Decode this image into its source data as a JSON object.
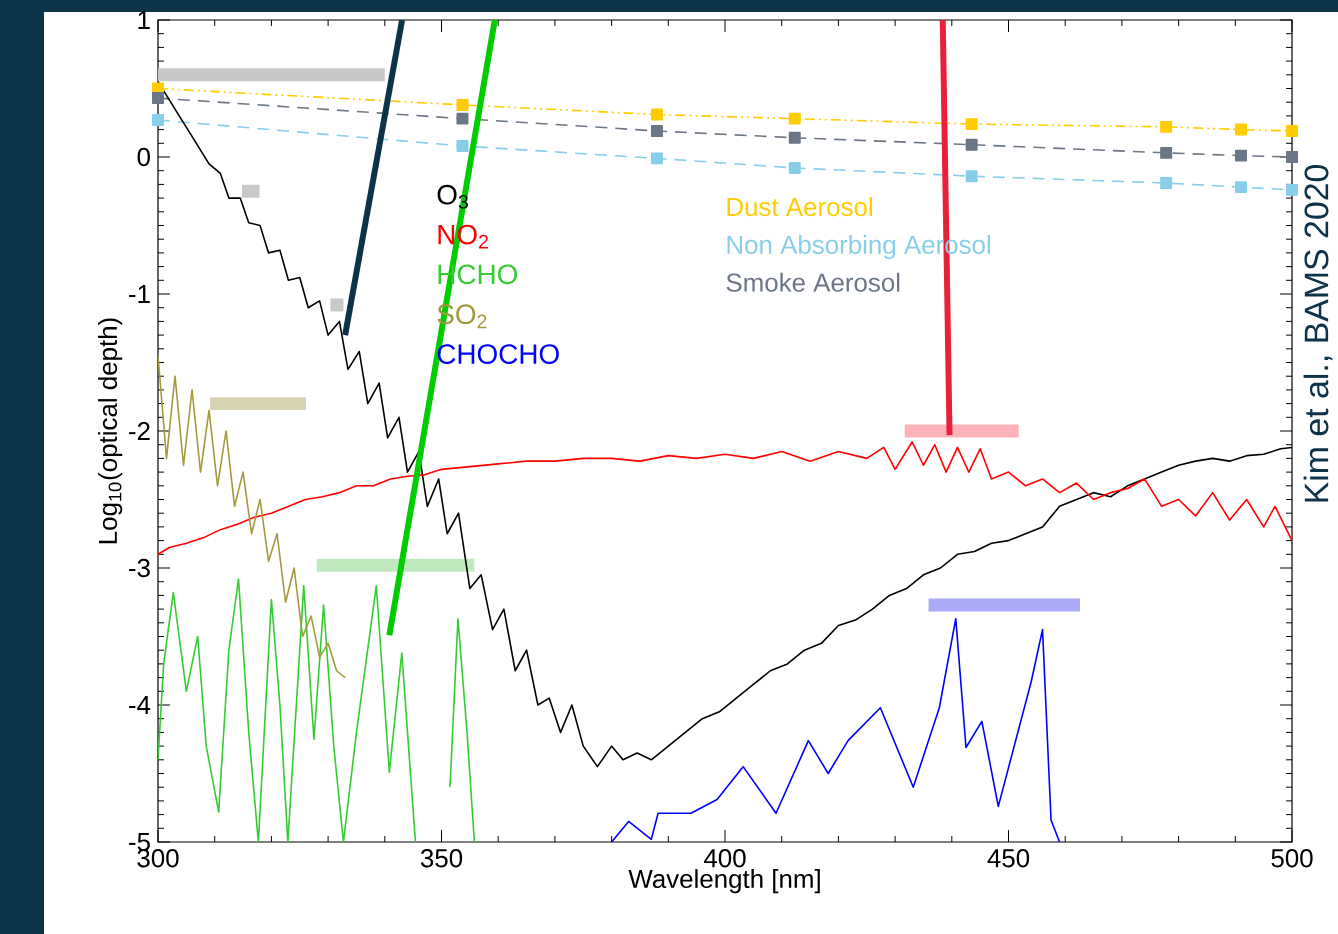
{
  "chart_data": {
    "type": "line",
    "xlabel": "Wavelength [nm]",
    "ylabel": "Log$_{10}$(optical depth)",
    "xlim": [
      300,
      500
    ],
    "xticks": [
      300,
      350,
      400,
      450,
      500
    ],
    "ylim": [
      -5,
      1
    ],
    "yticks": [
      -5,
      -4,
      -3,
      -2,
      -1,
      0,
      1
    ],
    "grid": false,
    "legend": "top",
    "annotations": [
      "Kim et al., BAMS 2020"
    ],
    "series": [
      {
        "color": "#c8c8c8",
        "x": [
          300,
          340
        ],
        "values": [
          0.6,
          0.6
        ]
      },
      {
        "color": "#c8c8c8",
        "x": [
          314.8,
          317.9
        ],
        "values": [
          -0.25,
          -0.25
        ]
      },
      {
        "color": "#c8c8c8",
        "x": [
          330.4,
          332.7
        ],
        "values": [
          -1.08,
          -1.08
        ]
      },
      {
        "color": "#d6d3b0",
        "x": [
          309.2,
          326.1
        ],
        "values": [
          -1.8,
          -1.8
        ]
      },
      {
        "color": "#bfeabf",
        "x": [
          328,
          355.8
        ],
        "values": [
          -2.98,
          -2.98
        ]
      },
      {
        "color": "#ffb3b8",
        "x": [
          431.7,
          451.8
        ],
        "values": [
          -2.0,
          -2.0
        ]
      },
      {
        "color": "#a9a9f7",
        "x": [
          435.9,
          462.6
        ],
        "values": [
          -3.27,
          -3.27
        ]
      },
      {
        "name": "Dust Aerosol",
        "color": "#ffcc00",
        "line_style": "dotted",
        "marker": "square",
        "x": [
          300,
          353.7,
          388,
          412.3,
          443.5,
          477.8,
          491,
          500
        ],
        "values": [
          0.5,
          0.38,
          0.31,
          0.28,
          0.24,
          0.22,
          0.2,
          0.19
        ]
      },
      {
        "name": "Non Absorbing Aerosol",
        "color": "#87ceeb",
        "line_style": "dashed",
        "marker": "square",
        "x": [
          300,
          353.7,
          388,
          412.3,
          443.5,
          477.8,
          491,
          500
        ],
        "values": [
          0.27,
          0.08,
          -0.01,
          -0.08,
          -0.14,
          -0.19,
          -0.22,
          -0.24
        ]
      },
      {
        "name": "Smoke Aerosol",
        "color": "#6b7686",
        "line_style": "dashed",
        "marker": "square",
        "x": [
          300,
          353.7,
          388,
          412.3,
          443.5,
          477.8,
          491,
          500
        ],
        "values": [
          0.43,
          0.28,
          0.19,
          0.14,
          0.09,
          0.03,
          0.01,
          0.0
        ]
      },
      {
        "name": "O$_{3}$",
        "color": "#000000",
        "x": [
          300,
          303,
          306,
          309,
          311,
          312.5,
          314.5,
          316,
          318,
          319.5,
          321.5,
          323,
          325,
          326.5,
          328.5,
          330,
          332,
          333.5,
          335.5,
          337,
          339,
          340.5,
          342.5,
          344,
          346,
          347.5,
          349.5,
          351,
          353,
          355,
          357,
          359,
          361,
          363,
          365,
          367,
          369,
          371,
          373,
          375,
          377.5,
          380,
          382,
          384.5,
          387,
          390,
          393,
          396,
          399,
          402,
          405,
          408,
          411,
          414,
          417,
          420,
          423,
          426,
          429,
          432,
          435,
          438,
          441,
          444,
          447,
          450,
          453,
          456,
          459,
          462,
          465,
          468,
          471,
          474,
          477,
          480,
          483,
          486,
          489,
          492,
          495,
          498,
          500
        ],
        "values": [
          0.55,
          0.35,
          0.15,
          -0.05,
          -0.12,
          -0.3,
          -0.3,
          -0.48,
          -0.5,
          -0.7,
          -0.68,
          -0.9,
          -0.88,
          -1.1,
          -1.05,
          -1.3,
          -1.2,
          -1.55,
          -1.42,
          -1.8,
          -1.65,
          -2.05,
          -1.9,
          -2.3,
          -2.15,
          -2.55,
          -2.35,
          -2.75,
          -2.6,
          -3.15,
          -3.05,
          -3.45,
          -3.3,
          -3.75,
          -3.6,
          -4.0,
          -3.95,
          -4.2,
          -4.0,
          -4.3,
          -4.45,
          -4.3,
          -4.4,
          -4.35,
          -4.4,
          -4.3,
          -4.2,
          -4.1,
          -4.05,
          -3.95,
          -3.85,
          -3.75,
          -3.7,
          -3.6,
          -3.55,
          -3.42,
          -3.38,
          -3.3,
          -3.2,
          -3.15,
          -3.05,
          -3.0,
          -2.9,
          -2.88,
          -2.82,
          -2.8,
          -2.75,
          -2.7,
          -2.55,
          -2.5,
          -2.45,
          -2.48,
          -2.4,
          -2.35,
          -2.3,
          -2.25,
          -2.22,
          -2.2,
          -2.22,
          -2.18,
          -2.17,
          -2.13,
          -2.12
        ]
      },
      {
        "name": "NO$_{2}$",
        "color": "#ff0000",
        "x": [
          300,
          302,
          305,
          308,
          311,
          314,
          317,
          320,
          323,
          326,
          329,
          332,
          335,
          338,
          341,
          344,
          347,
          350,
          355,
          360,
          365,
          370,
          375,
          380,
          385,
          390,
          395,
          400,
          405,
          410,
          415,
          420,
          425,
          428,
          430,
          433,
          435,
          437,
          439,
          441,
          443,
          445,
          447,
          450,
          453,
          456,
          459,
          462,
          465,
          468,
          471,
          474,
          477,
          480,
          483,
          486,
          489,
          492,
          495,
          497,
          500
        ],
        "values": [
          -2.9,
          -2.85,
          -2.82,
          -2.78,
          -2.72,
          -2.68,
          -2.63,
          -2.6,
          -2.55,
          -2.5,
          -2.48,
          -2.45,
          -2.4,
          -2.4,
          -2.35,
          -2.33,
          -2.32,
          -2.28,
          -2.26,
          -2.24,
          -2.22,
          -2.22,
          -2.2,
          -2.2,
          -2.22,
          -2.18,
          -2.2,
          -2.17,
          -2.2,
          -2.15,
          -2.22,
          -2.15,
          -2.2,
          -2.12,
          -2.28,
          -2.08,
          -2.25,
          -2.1,
          -2.3,
          -2.12,
          -2.3,
          -2.13,
          -2.35,
          -2.3,
          -2.4,
          -2.35,
          -2.45,
          -2.38,
          -2.5,
          -2.45,
          -2.42,
          -2.35,
          -2.55,
          -2.5,
          -2.62,
          -2.45,
          -2.65,
          -2.5,
          -2.7,
          -2.55,
          -2.8
        ]
      },
      {
        "name": "HCHO",
        "color": "#33cc33",
        "x": [
          300,
          301,
          302.7,
          305,
          307,
          308.5,
          310.7,
          312.5,
          314.2,
          316,
          317.7,
          320,
          321.5,
          322.9,
          325.7,
          327.5,
          329.2,
          331,
          332.7,
          335,
          338.5,
          340.8,
          343,
          345.4,
          348,
          351.5,
          352.9,
          354.5,
          355.8
        ],
        "values": [
          -4.4,
          -3.7,
          -3.18,
          -3.9,
          -3.5,
          -4.3,
          -4.78,
          -3.6,
          -3.08,
          -4.2,
          -5,
          -3.23,
          -4.0,
          -5,
          -3.13,
          -4.25,
          -3.27,
          -4.3,
          -5,
          -4.2,
          -3.13,
          -4.49,
          -3.62,
          -5,
          null,
          -4.6,
          -3.37,
          -4.2,
          -5
        ]
      },
      {
        "name": "SO$_{2}$",
        "color": "#a39a3e",
        "x": [
          300,
          301.5,
          303,
          304.5,
          306,
          307.5,
          309,
          310.5,
          312,
          313.5,
          315,
          316.5,
          318,
          319.5,
          321,
          322.5,
          324,
          325.5,
          327,
          328.5,
          330,
          331.5,
          333
        ],
        "values": [
          -1.45,
          -2.2,
          -1.6,
          -2.25,
          -1.7,
          -2.3,
          -1.85,
          -2.4,
          -2.0,
          -2.55,
          -2.3,
          -2.75,
          -2.5,
          -2.95,
          -2.75,
          -3.25,
          -3.0,
          -3.5,
          -3.35,
          -3.65,
          -3.55,
          -3.75,
          -3.8
        ]
      },
      {
        "name": "CHOCHO",
        "color": "#0000ff",
        "x": [
          380,
          383,
          387,
          388.2,
          394,
          398.6,
          403.2,
          409,
          414.7,
          418.2,
          421.7,
          427.4,
          433.2,
          437.8,
          440.7,
          442.5,
          445.3,
          448.2,
          454,
          456,
          457.5,
          459
        ],
        "values": [
          -5,
          -4.85,
          -4.98,
          -4.79,
          -4.79,
          -4.69,
          -4.45,
          -4.79,
          -4.26,
          -4.5,
          -4.26,
          -4.02,
          -4.6,
          -4.02,
          -3.37,
          -4.31,
          -4.12,
          -4.74,
          -3.83,
          -3.45,
          -4.84,
          -5
        ]
      },
      {
        "color": "#0d3349",
        "x": [
          333,
          343.05
        ],
        "values": [
          -1.3,
          1
        ]
      },
      {
        "color": "#00cc00",
        "x": [
          340.8,
          359.4
        ],
        "values": [
          -3.49,
          1
        ]
      },
      {
        "color": "#e8203a",
        "x": [
          439.6,
          438.4
        ],
        "values": [
          -2.03,
          1
        ]
      }
    ]
  }
}
